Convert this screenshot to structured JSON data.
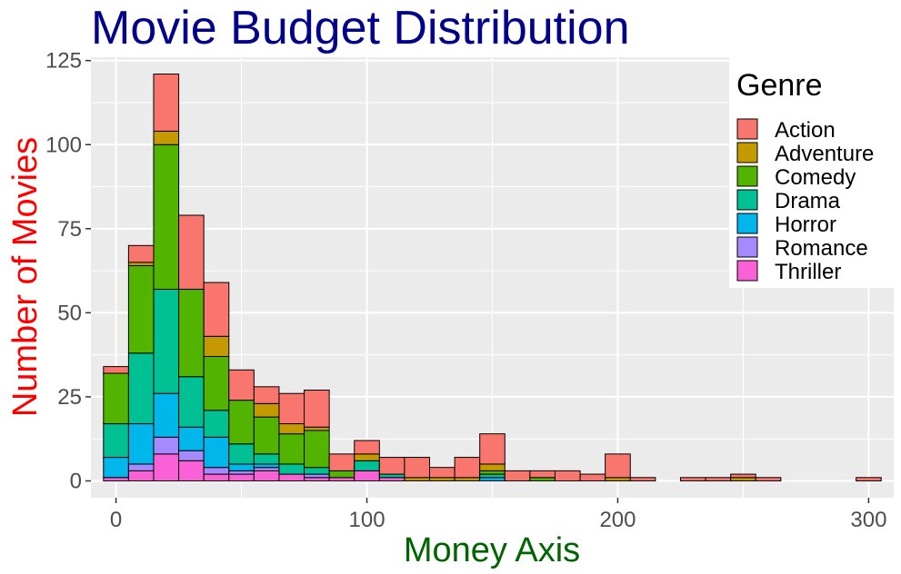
{
  "chart_data": {
    "type": "bar",
    "stacked": true,
    "title": "Movie Budget Distribution",
    "xlabel": "Money Axis",
    "ylabel": "Number of Movies",
    "xlim": [
      -10,
      310
    ],
    "ylim": [
      -5,
      126
    ],
    "xticks": [
      0,
      100,
      200,
      300
    ],
    "yticks": [
      0,
      25,
      50,
      75,
      100,
      125
    ],
    "grid": true,
    "bin_width": 10,
    "legend_position": "top-right",
    "legend_title": "Genre",
    "bins": [
      0,
      10,
      20,
      30,
      40,
      50,
      60,
      70,
      80,
      90,
      100,
      110,
      120,
      130,
      140,
      150,
      160,
      170,
      180,
      190,
      200,
      210,
      220,
      230,
      240,
      250,
      260,
      270,
      280,
      290,
      300
    ],
    "series": [
      {
        "name": "Thriller",
        "values": [
          1,
          3,
          8,
          6,
          2,
          2,
          3,
          2,
          1,
          1,
          3,
          1,
          0,
          0,
          0,
          0,
          0,
          0,
          0,
          0,
          0,
          0,
          0,
          0,
          0,
          0,
          0,
          0,
          0,
          0,
          0
        ]
      },
      {
        "name": "Romance",
        "values": [
          0,
          2,
          5,
          3,
          2,
          1,
          1,
          0,
          1,
          0,
          0,
          0,
          0,
          0,
          0,
          0,
          0,
          0,
          0,
          0,
          0,
          0,
          0,
          0,
          0,
          0,
          0,
          0,
          0,
          0,
          0
        ]
      },
      {
        "name": "Horror",
        "values": [
          6,
          12,
          13,
          7,
          9,
          2,
          1,
          0,
          0,
          0,
          0,
          0,
          0,
          0,
          0,
          1,
          0,
          0,
          0,
          0,
          0,
          0,
          0,
          0,
          0,
          0,
          0,
          0,
          0,
          0,
          0
        ]
      },
      {
        "name": "Drama",
        "values": [
          10,
          21,
          31,
          15,
          8,
          6,
          3,
          3,
          2,
          0,
          3,
          1,
          0,
          0,
          0,
          1,
          0,
          0,
          0,
          0,
          0,
          0,
          0,
          0,
          0,
          0,
          0,
          0,
          0,
          0,
          0
        ]
      },
      {
        "name": "Comedy",
        "values": [
          15,
          26,
          43,
          26,
          16,
          13,
          11,
          9,
          11,
          2,
          0,
          0,
          0,
          0,
          0,
          1,
          0,
          1,
          0,
          0,
          0,
          0,
          0,
          0,
          0,
          0,
          0,
          0,
          0,
          0,
          0
        ]
      },
      {
        "name": "Adventure",
        "values": [
          0,
          1,
          4,
          0,
          6,
          0,
          4,
          3,
          1,
          0,
          2,
          0,
          1,
          1,
          1,
          2,
          0,
          0,
          0,
          0,
          1,
          0,
          0,
          0,
          0,
          1,
          0,
          0,
          0,
          0,
          0
        ]
      },
      {
        "name": "Action",
        "values": [
          2,
          5,
          17,
          22,
          16,
          9,
          5,
          9,
          11,
          5,
          4,
          5,
          6,
          3,
          6,
          9,
          3,
          2,
          3,
          2,
          7,
          1,
          0,
          1,
          1,
          1,
          1,
          0,
          0,
          0,
          1
        ]
      }
    ],
    "legend": [
      "Action",
      "Adventure",
      "Comedy",
      "Drama",
      "Horror",
      "Romance",
      "Thriller"
    ],
    "colors": {
      "Action": "#F8766D",
      "Adventure": "#C49A00",
      "Comedy": "#53B400",
      "Drama": "#00C094",
      "Horror": "#00B6EB",
      "Romance": "#A58AFF",
      "Thriller": "#FB61D7"
    },
    "title_color": "#00008B",
    "xlabel_color": "#006400",
    "ylabel_color": "#FF0000",
    "panel_color": "#EBEBEB"
  }
}
